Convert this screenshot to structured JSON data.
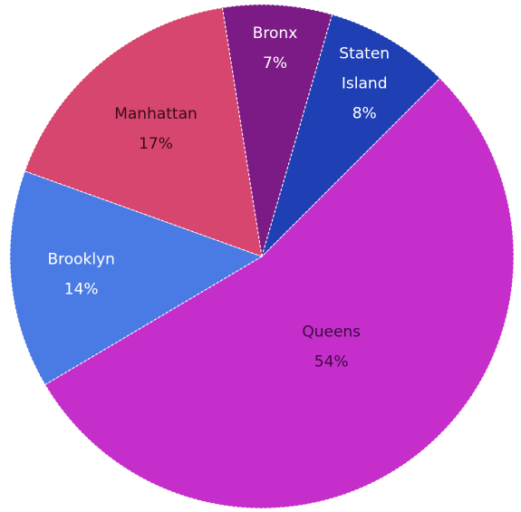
{
  "chart_data": {
    "type": "pie",
    "title": "",
    "start_angle_deg": -45,
    "direction": "clockwise",
    "slices": [
      {
        "label": "Queens",
        "value": 54,
        "value_label": "54%",
        "color": "#c52ecb",
        "text_color": "#3b0a3f"
      },
      {
        "label": "Brooklyn",
        "value": 14,
        "value_label": "14%",
        "color": "#4a7be5",
        "text_color": "#ffffff"
      },
      {
        "label": "Manhattan",
        "value": 17,
        "value_label": "17%",
        "color": "#d6466f",
        "text_color": "#3a0a1a"
      },
      {
        "label": "Bronx",
        "value": 7,
        "value_label": "7%",
        "color": "#7c1a86",
        "text_color": "#ffffff"
      },
      {
        "label": "Staten Island",
        "label_lines": [
          "Staten",
          "Island"
        ],
        "value": 8,
        "value_label": "8%",
        "color": "#1f3fb4",
        "text_color": "#ffffff"
      }
    ]
  }
}
